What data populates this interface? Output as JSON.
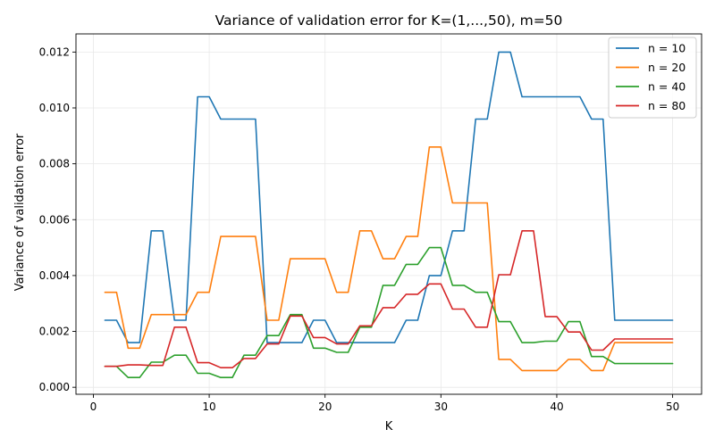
{
  "chart_data": {
    "type": "line",
    "title": "Variance of validation error for K=(1,...,50), m=50",
    "xlabel": "K",
    "ylabel": "Variance of validation error",
    "xlim": [
      -1.5,
      52.5
    ],
    "ylim": [
      -0.00025,
      0.01265
    ],
    "xticks": [
      0,
      10,
      20,
      30,
      40,
      50
    ],
    "xtick_labels": [
      "0",
      "10",
      "20",
      "30",
      "40",
      "50"
    ],
    "yticks": [
      0.0,
      0.002,
      0.004,
      0.006,
      0.008,
      0.01,
      0.012
    ],
    "ytick_labels": [
      "0.000",
      "0.002",
      "0.004",
      "0.006",
      "0.008",
      "0.010",
      "0.012"
    ],
    "grid": true,
    "legend_position": "top-right",
    "x": [
      1,
      2,
      3,
      4,
      5,
      6,
      7,
      8,
      9,
      10,
      11,
      12,
      13,
      14,
      15,
      16,
      17,
      18,
      19,
      20,
      21,
      22,
      23,
      24,
      25,
      26,
      27,
      28,
      29,
      30,
      31,
      32,
      33,
      34,
      35,
      36,
      37,
      38,
      39,
      40,
      41,
      42,
      43,
      44,
      45,
      46,
      47,
      48,
      49,
      50
    ],
    "series": [
      {
        "name": "n = 10",
        "color": "#1f77b4",
        "values": [
          0.0024,
          0.0024,
          0.0016,
          0.0016,
          0.0056,
          0.0056,
          0.0024,
          0.0024,
          0.0104,
          0.0104,
          0.0096,
          0.0096,
          0.0096,
          0.0096,
          0.0016,
          0.0016,
          0.0016,
          0.0016,
          0.0024,
          0.0024,
          0.0016,
          0.0016,
          0.0016,
          0.0016,
          0.0016,
          0.0016,
          0.0024,
          0.0024,
          0.004,
          0.004,
          0.0056,
          0.0056,
          0.0096,
          0.0096,
          0.012,
          0.012,
          0.0104,
          0.0104,
          0.0104,
          0.0104,
          0.0104,
          0.0104,
          0.0096,
          0.0096,
          0.0024,
          0.0024,
          0.0024,
          0.0024,
          0.0024,
          0.0024
        ]
      },
      {
        "name": "n = 20",
        "color": "#ff7f0e",
        "values": [
          0.0034,
          0.0034,
          0.0014,
          0.0014,
          0.0026,
          0.0026,
          0.0026,
          0.0026,
          0.0034,
          0.0034,
          0.0054,
          0.0054,
          0.0054,
          0.0054,
          0.0024,
          0.0024,
          0.0046,
          0.0046,
          0.0046,
          0.0046,
          0.0034,
          0.0034,
          0.0056,
          0.0056,
          0.0046,
          0.0046,
          0.0054,
          0.0054,
          0.0086,
          0.0086,
          0.0066,
          0.0066,
          0.0066,
          0.0066,
          0.001,
          0.001,
          0.0006,
          0.0006,
          0.0006,
          0.0006,
          0.001,
          0.001,
          0.0006,
          0.0006,
          0.0016,
          0.0016,
          0.0016,
          0.0016,
          0.0016,
          0.0016
        ]
      },
      {
        "name": "n = 40",
        "color": "#2ca02c",
        "values": [
          0.00075,
          0.00075,
          0.00035,
          0.00035,
          0.0009,
          0.0009,
          0.00115,
          0.00115,
          0.0005,
          0.0005,
          0.00035,
          0.00035,
          0.00115,
          0.00115,
          0.00185,
          0.00185,
          0.0026,
          0.0026,
          0.0014,
          0.0014,
          0.00125,
          0.00125,
          0.00215,
          0.00215,
          0.00365,
          0.00365,
          0.0044,
          0.0044,
          0.005,
          0.005,
          0.00365,
          0.00365,
          0.0034,
          0.0034,
          0.00235,
          0.00235,
          0.0016,
          0.0016,
          0.00165,
          0.00165,
          0.00235,
          0.00235,
          0.0011,
          0.0011,
          0.00085,
          0.00085,
          0.00085,
          0.00085,
          0.00085,
          0.00085
        ]
      },
      {
        "name": "n = 80",
        "color": "#d62728",
        "values": [
          0.00075,
          0.00075,
          0.0008,
          0.0008,
          0.00078,
          0.00078,
          0.00215,
          0.00215,
          0.00088,
          0.00088,
          0.0007,
          0.0007,
          0.00103,
          0.00103,
          0.00155,
          0.00155,
          0.00255,
          0.00255,
          0.00178,
          0.00178,
          0.00155,
          0.00155,
          0.0022,
          0.0022,
          0.00285,
          0.00285,
          0.00333,
          0.00333,
          0.0037,
          0.0037,
          0.0028,
          0.0028,
          0.00215,
          0.00215,
          0.00403,
          0.00403,
          0.0056,
          0.0056,
          0.00253,
          0.00253,
          0.00198,
          0.00198,
          0.00133,
          0.00133,
          0.00173,
          0.00173,
          0.00173,
          0.00173,
          0.00173,
          0.00173
        ]
      }
    ]
  }
}
